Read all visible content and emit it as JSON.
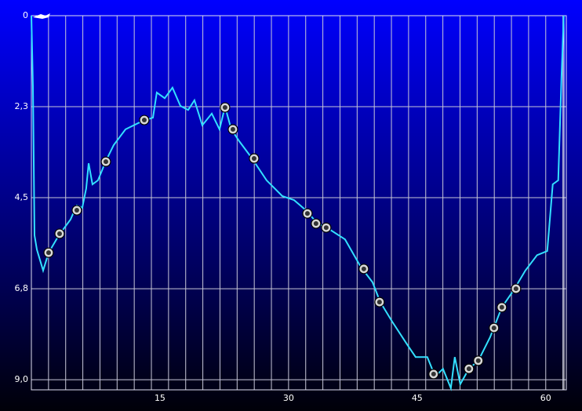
{
  "chart_data": {
    "type": "line",
    "x": [
      0,
      0.18,
      0.37,
      0.64,
      1.37,
      2.01,
      3.2,
      4.57,
      5.3,
      5.94,
      6.4,
      6.68,
      7.13,
      7.77,
      8.69,
      9.6,
      10.98,
      12.81,
      14.18,
      14.63,
      15.55,
      16.46,
      17.38,
      18.29,
      19.02,
      19.94,
      21.04,
      21.95,
      22.59,
      23.32,
      24.24,
      25.61,
      27.44,
      29.27,
      30.64,
      32.01,
      33.39,
      34.76,
      36.59,
      38.42,
      39.79,
      40.7,
      42.08,
      43.9,
      44.82,
      46.19,
      47.1,
      48.02,
      48.93,
      49.39,
      50.03,
      51.04,
      52.13,
      53.51,
      54.88,
      56.25,
      57.62,
      58.99,
      60.18,
      60.82,
      61.46,
      61.83,
      62.1
    ],
    "series": [
      {
        "color": "#33e0ff",
        "values": [
          0,
          1.75,
          5.43,
          5.78,
          6.3,
          5.86,
          5.43,
          5.04,
          4.69,
          4.75,
          4.27,
          3.65,
          4.17,
          4.07,
          3.59,
          3.2,
          2.81,
          2.62,
          2.52,
          1.9,
          2.04,
          1.78,
          2.23,
          2.33,
          2.09,
          2.71,
          2.42,
          2.81,
          2.25,
          2.81,
          3.1,
          3.49,
          4.07,
          4.46,
          4.56,
          4.81,
          5.14,
          5.28,
          5.53,
          6.21,
          6.59,
          7.08,
          7.56,
          8.15,
          8.44,
          8.44,
          8.92,
          8.73,
          9.21,
          8.44,
          9.11,
          8.73,
          8.53,
          7.95,
          7.21,
          6.79,
          6.3,
          5.92,
          5.82,
          4.17,
          4.07,
          1.55,
          0
        ]
      }
    ],
    "events": {
      "x": [
        2.01,
        3.29,
        5.3,
        8.69,
        13.17,
        22.59,
        23.51,
        25.98,
        32.2,
        33.2,
        34.39,
        38.78,
        40.61,
        46.92,
        51.04,
        52.13,
        53.96,
        54.88,
        56.53
      ],
      "values": [
        5.86,
        5.39,
        4.81,
        3.61,
        2.58,
        2.27,
        2.81,
        3.53,
        4.89,
        5.14,
        5.24,
        6.26,
        7.08,
        8.86,
        8.73,
        8.53,
        7.72,
        7.21,
        6.75
      ]
    },
    "xlim": [
      0,
      62.4
    ],
    "xticks": [
      15,
      30,
      45,
      60
    ],
    "xgrid": [
      2,
      4,
      6,
      8,
      10,
      12,
      14,
      16,
      18,
      20,
      22,
      24,
      26,
      28,
      30,
      32,
      34,
      36,
      38,
      40,
      42,
      44,
      46,
      48,
      50,
      52,
      54,
      56,
      58,
      60,
      62
    ],
    "ylim": [
      0,
      9.25
    ],
    "y_inverted": true,
    "yticks": [
      0,
      {
        "value": 2.25,
        "label": "2,3"
      },
      {
        "value": 4.5,
        "label": "4,5"
      },
      {
        "value": 6.75,
        "label": "6,8"
      },
      {
        "value": 9,
        "label": "9,0"
      }
    ],
    "grid": true
  }
}
